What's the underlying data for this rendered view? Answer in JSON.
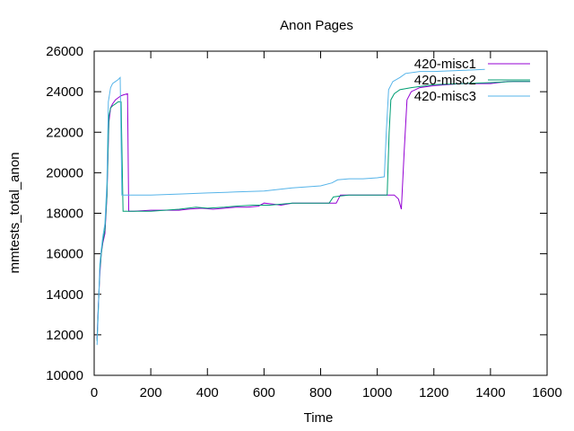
{
  "chart_data": {
    "type": "line",
    "title": "Anon Pages",
    "xlabel": "Time",
    "ylabel": "mmtests_total_anon",
    "xlim": [
      0,
      1600
    ],
    "ylim": [
      10000,
      26000
    ],
    "xticks": [
      0,
      200,
      400,
      600,
      800,
      1000,
      1200,
      1400,
      1600
    ],
    "yticks": [
      10000,
      12000,
      14000,
      16000,
      18000,
      20000,
      22000,
      24000,
      26000
    ],
    "legend_position": "top-right",
    "grid": false,
    "series": [
      {
        "name": "420-misc1",
        "color": "#9400d3",
        "points": [
          [
            10,
            11800
          ],
          [
            15,
            13500
          ],
          [
            20,
            15000
          ],
          [
            25,
            16000
          ],
          [
            30,
            16500
          ],
          [
            38,
            17000
          ],
          [
            45,
            18800
          ],
          [
            52,
            22500
          ],
          [
            58,
            23200
          ],
          [
            65,
            23400
          ],
          [
            75,
            23600
          ],
          [
            85,
            23700
          ],
          [
            95,
            23800
          ],
          [
            105,
            23850
          ],
          [
            118,
            23900
          ],
          [
            122,
            18100
          ],
          [
            140,
            18100
          ],
          [
            200,
            18150
          ],
          [
            300,
            18150
          ],
          [
            330,
            18200
          ],
          [
            380,
            18250
          ],
          [
            420,
            18200
          ],
          [
            460,
            18250
          ],
          [
            500,
            18300
          ],
          [
            540,
            18300
          ],
          [
            580,
            18350
          ],
          [
            600,
            18500
          ],
          [
            630,
            18450
          ],
          [
            660,
            18400
          ],
          [
            700,
            18500
          ],
          [
            760,
            18500
          ],
          [
            820,
            18500
          ],
          [
            855,
            18500
          ],
          [
            870,
            18900
          ],
          [
            900,
            18900
          ],
          [
            950,
            18900
          ],
          [
            1000,
            18900
          ],
          [
            1060,
            18900
          ],
          [
            1075,
            18700
          ],
          [
            1085,
            18200
          ],
          [
            1095,
            21000
          ],
          [
            1105,
            23600
          ],
          [
            1120,
            24000
          ],
          [
            1150,
            24200
          ],
          [
            1200,
            24300
          ],
          [
            1300,
            24400
          ],
          [
            1400,
            24400
          ],
          [
            1460,
            24500
          ],
          [
            1540,
            24500
          ]
        ]
      },
      {
        "name": "420-misc2",
        "color": "#009e73",
        "points": [
          [
            10,
            11700
          ],
          [
            15,
            13400
          ],
          [
            20,
            15200
          ],
          [
            25,
            16000
          ],
          [
            30,
            16600
          ],
          [
            38,
            17200
          ],
          [
            45,
            18900
          ],
          [
            52,
            22800
          ],
          [
            58,
            23200
          ],
          [
            65,
            23300
          ],
          [
            75,
            23400
          ],
          [
            85,
            23500
          ],
          [
            95,
            23500
          ],
          [
            102,
            18100
          ],
          [
            140,
            18100
          ],
          [
            200,
            18100
          ],
          [
            300,
            18200
          ],
          [
            360,
            18300
          ],
          [
            400,
            18250
          ],
          [
            460,
            18300
          ],
          [
            500,
            18350
          ],
          [
            560,
            18400
          ],
          [
            620,
            18400
          ],
          [
            700,
            18500
          ],
          [
            800,
            18500
          ],
          [
            830,
            18500
          ],
          [
            845,
            18800
          ],
          [
            870,
            18850
          ],
          [
            900,
            18900
          ],
          [
            950,
            18900
          ],
          [
            1000,
            18900
          ],
          [
            1035,
            18900
          ],
          [
            1042,
            22000
          ],
          [
            1048,
            23600
          ],
          [
            1060,
            23900
          ],
          [
            1080,
            24100
          ],
          [
            1120,
            24200
          ],
          [
            1200,
            24350
          ],
          [
            1300,
            24400
          ],
          [
            1400,
            24450
          ],
          [
            1480,
            24500
          ],
          [
            1540,
            24500
          ]
        ]
      },
      {
        "name": "420-misc3",
        "color": "#56b4e9",
        "points": [
          [
            10,
            11500
          ],
          [
            15,
            13200
          ],
          [
            20,
            15500
          ],
          [
            25,
            16200
          ],
          [
            30,
            16800
          ],
          [
            38,
            17500
          ],
          [
            45,
            19500
          ],
          [
            50,
            23500
          ],
          [
            58,
            24200
          ],
          [
            65,
            24400
          ],
          [
            75,
            24500
          ],
          [
            85,
            24600
          ],
          [
            92,
            24700
          ],
          [
            98,
            18900
          ],
          [
            140,
            18900
          ],
          [
            200,
            18900
          ],
          [
            300,
            18950
          ],
          [
            400,
            19000
          ],
          [
            500,
            19050
          ],
          [
            600,
            19100
          ],
          [
            700,
            19250
          ],
          [
            800,
            19350
          ],
          [
            840,
            19500
          ],
          [
            860,
            19650
          ],
          [
            900,
            19700
          ],
          [
            950,
            19700
          ],
          [
            1000,
            19750
          ],
          [
            1025,
            19800
          ],
          [
            1032,
            22000
          ],
          [
            1040,
            24100
          ],
          [
            1055,
            24500
          ],
          [
            1080,
            24700
          ],
          [
            1100,
            24900
          ],
          [
            1150,
            25000
          ],
          [
            1200,
            25000
          ],
          [
            1300,
            25050
          ],
          [
            1380,
            25100
          ]
        ]
      }
    ]
  }
}
